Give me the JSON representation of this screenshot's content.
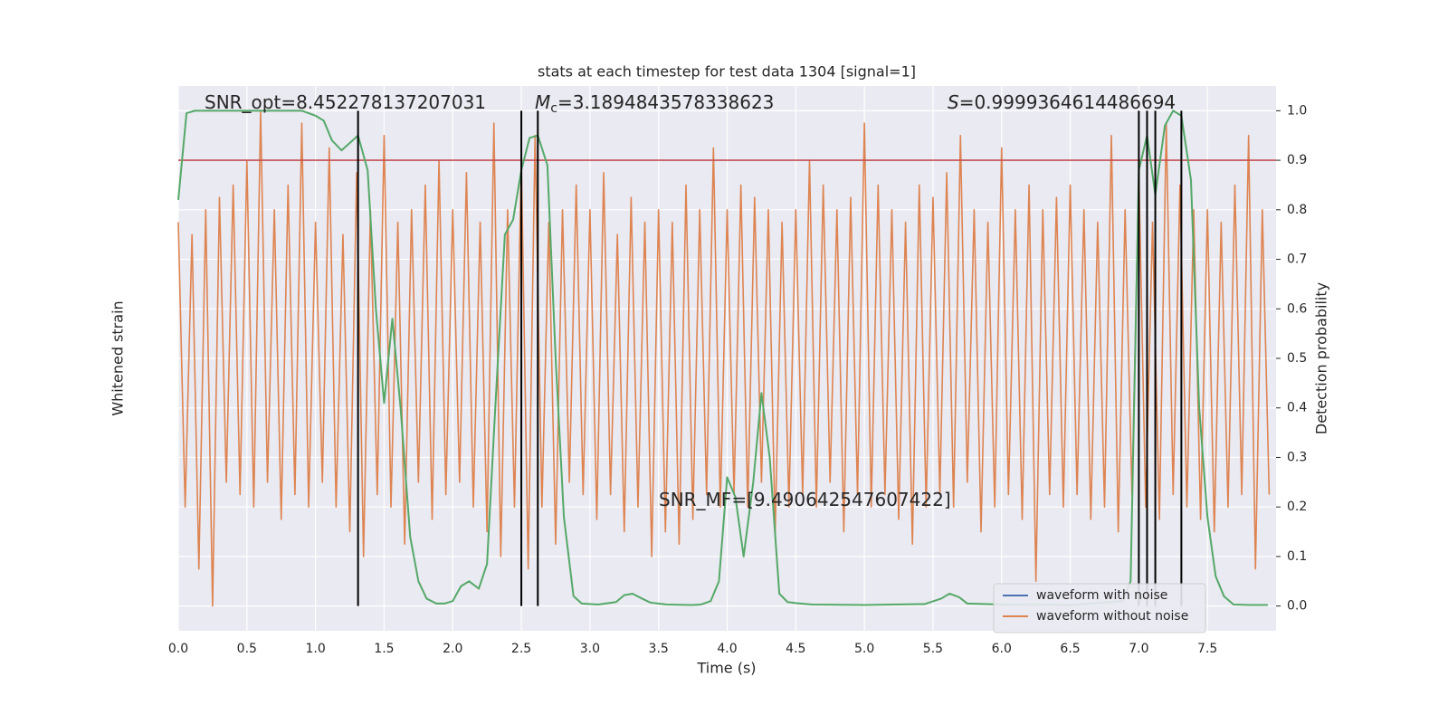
{
  "chart_data": {
    "type": "line",
    "title": "stats at each timestep for test data 1304 [signal=1]",
    "xlabel": "Time (s)",
    "ylabel": "Whitened strain",
    "y2label": "Detection probability",
    "xlim": [
      0,
      8
    ],
    "ylim": [
      -1.1,
      1.1
    ],
    "y2lim": [
      -0.05,
      1.05
    ],
    "xticks": [
      {
        "value": 0,
        "label": "0.0"
      },
      0.5,
      {
        "value": 1,
        "label": "1.0"
      },
      1.5,
      {
        "value": 2,
        "label": "2.0"
      },
      2.5,
      {
        "value": 3,
        "label": "3.0"
      },
      3.5,
      {
        "value": 4,
        "label": "4.0"
      },
      4.5,
      {
        "value": 5,
        "label": "5.0"
      },
      5.5,
      {
        "value": 6,
        "label": "6.0"
      },
      6.5,
      {
        "value": 7,
        "label": "7.0"
      },
      7.5
    ],
    "y2ticks": [
      {
        "value": 0,
        "label": "0.0"
      },
      0.1,
      0.2,
      0.3,
      0.4,
      0.5,
      0.6,
      0.7,
      0.8,
      0.9,
      {
        "value": 1,
        "label": "1.0"
      }
    ],
    "grid": true,
    "legend": "lower right",
    "series": [
      {
        "name": "waveform with noise",
        "color": "#4c72b0"
      },
      {
        "name": "waveform without noise",
        "color": "#dd8452",
        "x": [
          0,
          0.05,
          0.1,
          0.15,
          0.2,
          0.25,
          0.3,
          0.35,
          0.4,
          0.45,
          0.5,
          0.55,
          0.6,
          0.65,
          0.7,
          0.75,
          0.8,
          0.85,
          0.9,
          0.95,
          1,
          1.05,
          1.1,
          1.15,
          1.2,
          1.25,
          1.3,
          1.35,
          1.4,
          1.45,
          1.5,
          1.55,
          1.6,
          1.65,
          1.7,
          1.75,
          1.8,
          1.85,
          1.9,
          1.95,
          2,
          2.05,
          2.1,
          2.15,
          2.2,
          2.25,
          2.3,
          2.35,
          2.4,
          2.45,
          2.5,
          2.55,
          2.6,
          2.65,
          2.7,
          2.75,
          2.8,
          2.85,
          2.9,
          2.95,
          3,
          3.05,
          3.1,
          3.15,
          3.2,
          3.25,
          3.3,
          3.35,
          3.4,
          3.45,
          3.5,
          3.55,
          3.6,
          3.65,
          3.7,
          3.75,
          3.8,
          3.85,
          3.9,
          3.95,
          4,
          4.05,
          4.1,
          4.15,
          4.2,
          4.25,
          4.3,
          4.35,
          4.4,
          4.45,
          4.5,
          4.55,
          4.6,
          4.65,
          4.7,
          4.75,
          4.8,
          4.85,
          4.9,
          4.95,
          5,
          5.05,
          5.1,
          5.15,
          5.2,
          5.25,
          5.3,
          5.35,
          5.4,
          5.45,
          5.5,
          5.55,
          5.6,
          5.65,
          5.7,
          5.75,
          5.8,
          5.85,
          5.9,
          5.95,
          6,
          6.05,
          6.1,
          6.15,
          6.2,
          6.25,
          6.3,
          6.35,
          6.4,
          6.45,
          6.5,
          6.55,
          6.6,
          6.65,
          6.7,
          6.75,
          6.8,
          6.85,
          6.9,
          6.95,
          7,
          7.05,
          7.1,
          7.15,
          7.2,
          7.25,
          7.3,
          7.35,
          7.4,
          7.45,
          7.5,
          7.55,
          7.6,
          7.65,
          7.7,
          7.75,
          7.8,
          7.85,
          7.9,
          7.95
        ],
        "values": [
          0.55,
          -0.6,
          0.5,
          -0.85,
          0.6,
          -1.0,
          0.65,
          -0.5,
          0.7,
          -0.55,
          0.8,
          -0.6,
          1.0,
          -0.5,
          0.6,
          -0.65,
          0.7,
          -0.55,
          0.95,
          -0.6,
          0.55,
          -0.5,
          0.85,
          -0.6,
          0.5,
          -0.7,
          0.75,
          -0.8,
          0.6,
          -0.55,
          0.9,
          -0.6,
          0.55,
          -0.75,
          0.6,
          -0.5,
          0.7,
          -0.65,
          0.8,
          -0.55,
          0.6,
          -0.5,
          0.75,
          -0.6,
          0.55,
          -0.7,
          0.95,
          -0.8,
          0.6,
          -0.6,
          0.8,
          -0.85,
          0.9,
          -0.6,
          0.55,
          -0.75,
          0.6,
          -0.5,
          0.7,
          -0.55,
          0.6,
          -0.65,
          0.75,
          -0.55,
          0.5,
          -0.7,
          0.65,
          -0.6,
          0.55,
          -0.8,
          0.6,
          -0.7,
          0.55,
          -0.75,
          0.7,
          -0.65,
          0.6,
          -0.55,
          0.85,
          -0.6,
          0.6,
          -0.55,
          0.7,
          -0.6,
          0.65,
          -0.5,
          0.6,
          -0.7,
          0.55,
          -0.6,
          0.6,
          -0.55,
          0.8,
          -0.6,
          0.7,
          -0.5,
          0.6,
          -0.7,
          0.65,
          -0.55,
          0.95,
          -0.6,
          0.7,
          -0.55,
          0.6,
          -0.65,
          0.55,
          -0.75,
          0.7,
          -0.6,
          0.65,
          -0.55,
          0.75,
          -0.6,
          0.9,
          -0.5,
          0.6,
          -0.7,
          0.55,
          -0.6,
          0.85,
          -0.55,
          0.6,
          -0.65,
          0.7,
          -0.9,
          0.6,
          -0.55,
          0.65,
          -0.6,
          0.7,
          -0.55,
          0.6,
          -0.65,
          0.55,
          -0.6,
          0.9,
          -0.7,
          0.6,
          -0.55,
          0.75,
          -0.6,
          0.55,
          -0.65,
          0.95,
          -0.55,
          0.7,
          -0.6,
          0.6,
          -0.65,
          0.6,
          -0.7,
          0.55,
          -0.6,
          0.7,
          -0.55,
          0.9,
          -0.85,
          0.6,
          -0.55
        ]
      },
      {
        "color": "#55a868",
        "axis": "y2",
        "x": [
          0,
          0.06,
          0.12,
          0.5,
          0.9,
          1.0,
          1.06,
          1.12,
          1.19,
          1.31,
          1.38,
          1.44,
          1.5,
          1.56,
          1.62,
          1.69,
          1.75,
          1.81,
          1.88,
          1.94,
          2.0,
          2.06,
          2.12,
          2.19,
          2.25,
          2.31,
          2.38,
          2.44,
          2.5,
          2.56,
          2.62,
          2.69,
          2.75,
          2.81,
          2.88,
          2.94,
          3.06,
          3.19,
          3.25,
          3.31,
          3.38,
          3.44,
          3.56,
          3.75,
          3.81,
          3.88,
          3.94,
          4.0,
          4.06,
          4.12,
          4.19,
          4.25,
          4.31,
          4.38,
          4.44,
          4.5,
          4.62,
          5.0,
          5.44,
          5.56,
          5.62,
          5.69,
          5.75,
          6.0,
          6.5,
          6.88,
          6.94,
          7.0,
          7.06,
          7.12,
          7.19,
          7.25,
          7.31,
          7.38,
          7.44,
          7.5,
          7.56,
          7.62,
          7.69,
          7.81,
          7.94
        ],
        "values": [
          0.82,
          0.995,
          1.0,
          1.0,
          1.0,
          0.99,
          0.98,
          0.94,
          0.92,
          0.95,
          0.88,
          0.6,
          0.41,
          0.58,
          0.4,
          0.14,
          0.05,
          0.015,
          0.005,
          0.005,
          0.01,
          0.04,
          0.05,
          0.035,
          0.085,
          0.4,
          0.75,
          0.78,
          0.88,
          0.945,
          0.95,
          0.89,
          0.5,
          0.18,
          0.02,
          0.005,
          0.003,
          0.008,
          0.022,
          0.025,
          0.015,
          0.007,
          0.003,
          0.002,
          0.003,
          0.01,
          0.05,
          0.26,
          0.22,
          0.1,
          0.25,
          0.43,
          0.3,
          0.025,
          0.008,
          0.006,
          0.003,
          0.002,
          0.004,
          0.015,
          0.025,
          0.018,
          0.005,
          0.003,
          0.002,
          0.01,
          0.05,
          0.88,
          0.95,
          0.83,
          0.97,
          1.0,
          0.99,
          0.86,
          0.4,
          0.18,
          0.06,
          0.02,
          0.003,
          0.002,
          0.002
        ]
      }
    ],
    "threshold": {
      "value": 0.9,
      "color": "#c44e52"
    },
    "vlines": {
      "x": [
        1.31,
        2.5,
        2.62,
        7.0,
        7.06,
        7.12,
        7.31
      ],
      "color": "#000000"
    },
    "annotations": [
      {
        "parts": [
          "SNR_opt=8.452278137207031"
        ]
      },
      {
        "parts": [
          "M",
          "c",
          "=3.1894843578338623"
        ]
      },
      {
        "parts": [
          "S",
          "=0.9999364614486694"
        ]
      },
      {
        "parts": [
          "SNR_MF=[9.490642547607422]"
        ]
      }
    ]
  }
}
